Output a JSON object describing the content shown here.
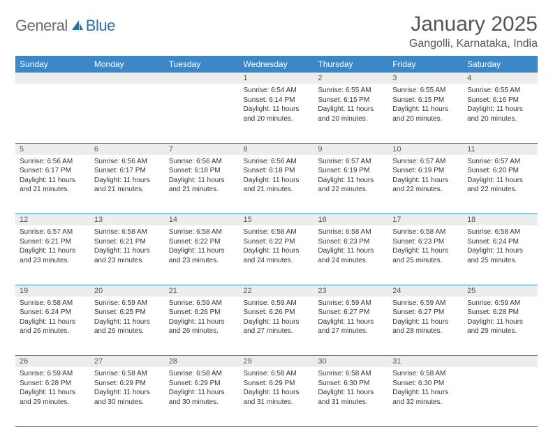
{
  "logo": {
    "text1": "General",
    "text2": "Blue"
  },
  "title": "January 2025",
  "location": "Gangolli, Karnataka, India",
  "colors": {
    "header_bg": "#3b87c8",
    "header_text": "#ffffff",
    "daynum_bg": "#eceded",
    "border": "#3b87c8",
    "body_text": "#333333",
    "title_text": "#555555",
    "logo_gray": "#6b6b6b",
    "logo_blue": "#2f6fa8"
  },
  "weekdays": [
    "Sunday",
    "Monday",
    "Tuesday",
    "Wednesday",
    "Thursday",
    "Friday",
    "Saturday"
  ],
  "weeks": [
    [
      null,
      null,
      null,
      {
        "n": "1",
        "sr": "6:54 AM",
        "ss": "6:14 PM",
        "dl": "11 hours and 20 minutes."
      },
      {
        "n": "2",
        "sr": "6:55 AM",
        "ss": "6:15 PM",
        "dl": "11 hours and 20 minutes."
      },
      {
        "n": "3",
        "sr": "6:55 AM",
        "ss": "6:15 PM",
        "dl": "11 hours and 20 minutes."
      },
      {
        "n": "4",
        "sr": "6:55 AM",
        "ss": "6:16 PM",
        "dl": "11 hours and 20 minutes."
      }
    ],
    [
      {
        "n": "5",
        "sr": "6:56 AM",
        "ss": "6:17 PM",
        "dl": "11 hours and 21 minutes."
      },
      {
        "n": "6",
        "sr": "6:56 AM",
        "ss": "6:17 PM",
        "dl": "11 hours and 21 minutes."
      },
      {
        "n": "7",
        "sr": "6:56 AM",
        "ss": "6:18 PM",
        "dl": "11 hours and 21 minutes."
      },
      {
        "n": "8",
        "sr": "6:56 AM",
        "ss": "6:18 PM",
        "dl": "11 hours and 21 minutes."
      },
      {
        "n": "9",
        "sr": "6:57 AM",
        "ss": "6:19 PM",
        "dl": "11 hours and 22 minutes."
      },
      {
        "n": "10",
        "sr": "6:57 AM",
        "ss": "6:19 PM",
        "dl": "11 hours and 22 minutes."
      },
      {
        "n": "11",
        "sr": "6:57 AM",
        "ss": "6:20 PM",
        "dl": "11 hours and 22 minutes."
      }
    ],
    [
      {
        "n": "12",
        "sr": "6:57 AM",
        "ss": "6:21 PM",
        "dl": "11 hours and 23 minutes."
      },
      {
        "n": "13",
        "sr": "6:58 AM",
        "ss": "6:21 PM",
        "dl": "11 hours and 23 minutes."
      },
      {
        "n": "14",
        "sr": "6:58 AM",
        "ss": "6:22 PM",
        "dl": "11 hours and 23 minutes."
      },
      {
        "n": "15",
        "sr": "6:58 AM",
        "ss": "6:22 PM",
        "dl": "11 hours and 24 minutes."
      },
      {
        "n": "16",
        "sr": "6:58 AM",
        "ss": "6:23 PM",
        "dl": "11 hours and 24 minutes."
      },
      {
        "n": "17",
        "sr": "6:58 AM",
        "ss": "6:23 PM",
        "dl": "11 hours and 25 minutes."
      },
      {
        "n": "18",
        "sr": "6:58 AM",
        "ss": "6:24 PM",
        "dl": "11 hours and 25 minutes."
      }
    ],
    [
      {
        "n": "19",
        "sr": "6:58 AM",
        "ss": "6:24 PM",
        "dl": "11 hours and 26 minutes."
      },
      {
        "n": "20",
        "sr": "6:59 AM",
        "ss": "6:25 PM",
        "dl": "11 hours and 26 minutes."
      },
      {
        "n": "21",
        "sr": "6:59 AM",
        "ss": "6:26 PM",
        "dl": "11 hours and 26 minutes."
      },
      {
        "n": "22",
        "sr": "6:59 AM",
        "ss": "6:26 PM",
        "dl": "11 hours and 27 minutes."
      },
      {
        "n": "23",
        "sr": "6:59 AM",
        "ss": "6:27 PM",
        "dl": "11 hours and 27 minutes."
      },
      {
        "n": "24",
        "sr": "6:59 AM",
        "ss": "6:27 PM",
        "dl": "11 hours and 28 minutes."
      },
      {
        "n": "25",
        "sr": "6:59 AM",
        "ss": "6:28 PM",
        "dl": "11 hours and 29 minutes."
      }
    ],
    [
      {
        "n": "26",
        "sr": "6:59 AM",
        "ss": "6:28 PM",
        "dl": "11 hours and 29 minutes."
      },
      {
        "n": "27",
        "sr": "6:58 AM",
        "ss": "6:29 PM",
        "dl": "11 hours and 30 minutes."
      },
      {
        "n": "28",
        "sr": "6:58 AM",
        "ss": "6:29 PM",
        "dl": "11 hours and 30 minutes."
      },
      {
        "n": "29",
        "sr": "6:58 AM",
        "ss": "6:29 PM",
        "dl": "11 hours and 31 minutes."
      },
      {
        "n": "30",
        "sr": "6:58 AM",
        "ss": "6:30 PM",
        "dl": "11 hours and 31 minutes."
      },
      {
        "n": "31",
        "sr": "6:58 AM",
        "ss": "6:30 PM",
        "dl": "11 hours and 32 minutes."
      },
      null
    ]
  ],
  "labels": {
    "sunrise": "Sunrise:",
    "sunset": "Sunset:",
    "daylight": "Daylight:"
  }
}
